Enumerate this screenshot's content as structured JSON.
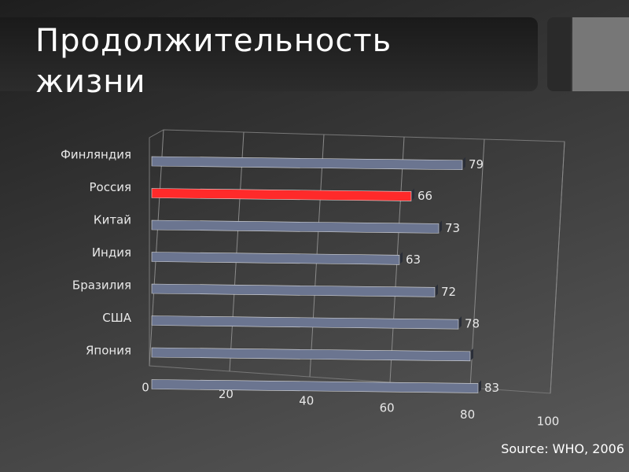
{
  "chart_data": {
    "type": "bar",
    "orientation": "horizontal",
    "title": "Продолжительность жизни",
    "source": "Source: WHO, 2006",
    "categories": [
      "Финляндия",
      "Россия",
      "Китай",
      "Индия",
      "Бразилия",
      "США",
      "Япония",
      null
    ],
    "values": [
      79,
      66,
      73,
      63,
      72,
      78,
      81,
      83
    ],
    "value_labels": [
      "79",
      "66",
      "73",
      "63",
      "72",
      "78",
      null,
      "83"
    ],
    "colors": [
      "#6b7590",
      "#ff2a2a",
      "#6b7590",
      "#6b7590",
      "#6b7590",
      "#6b7590",
      "#6b7590",
      "#6b7590"
    ],
    "xlim": [
      0,
      100
    ],
    "xticks": [
      0,
      20,
      40,
      60,
      80,
      100
    ],
    "grid": true
  }
}
